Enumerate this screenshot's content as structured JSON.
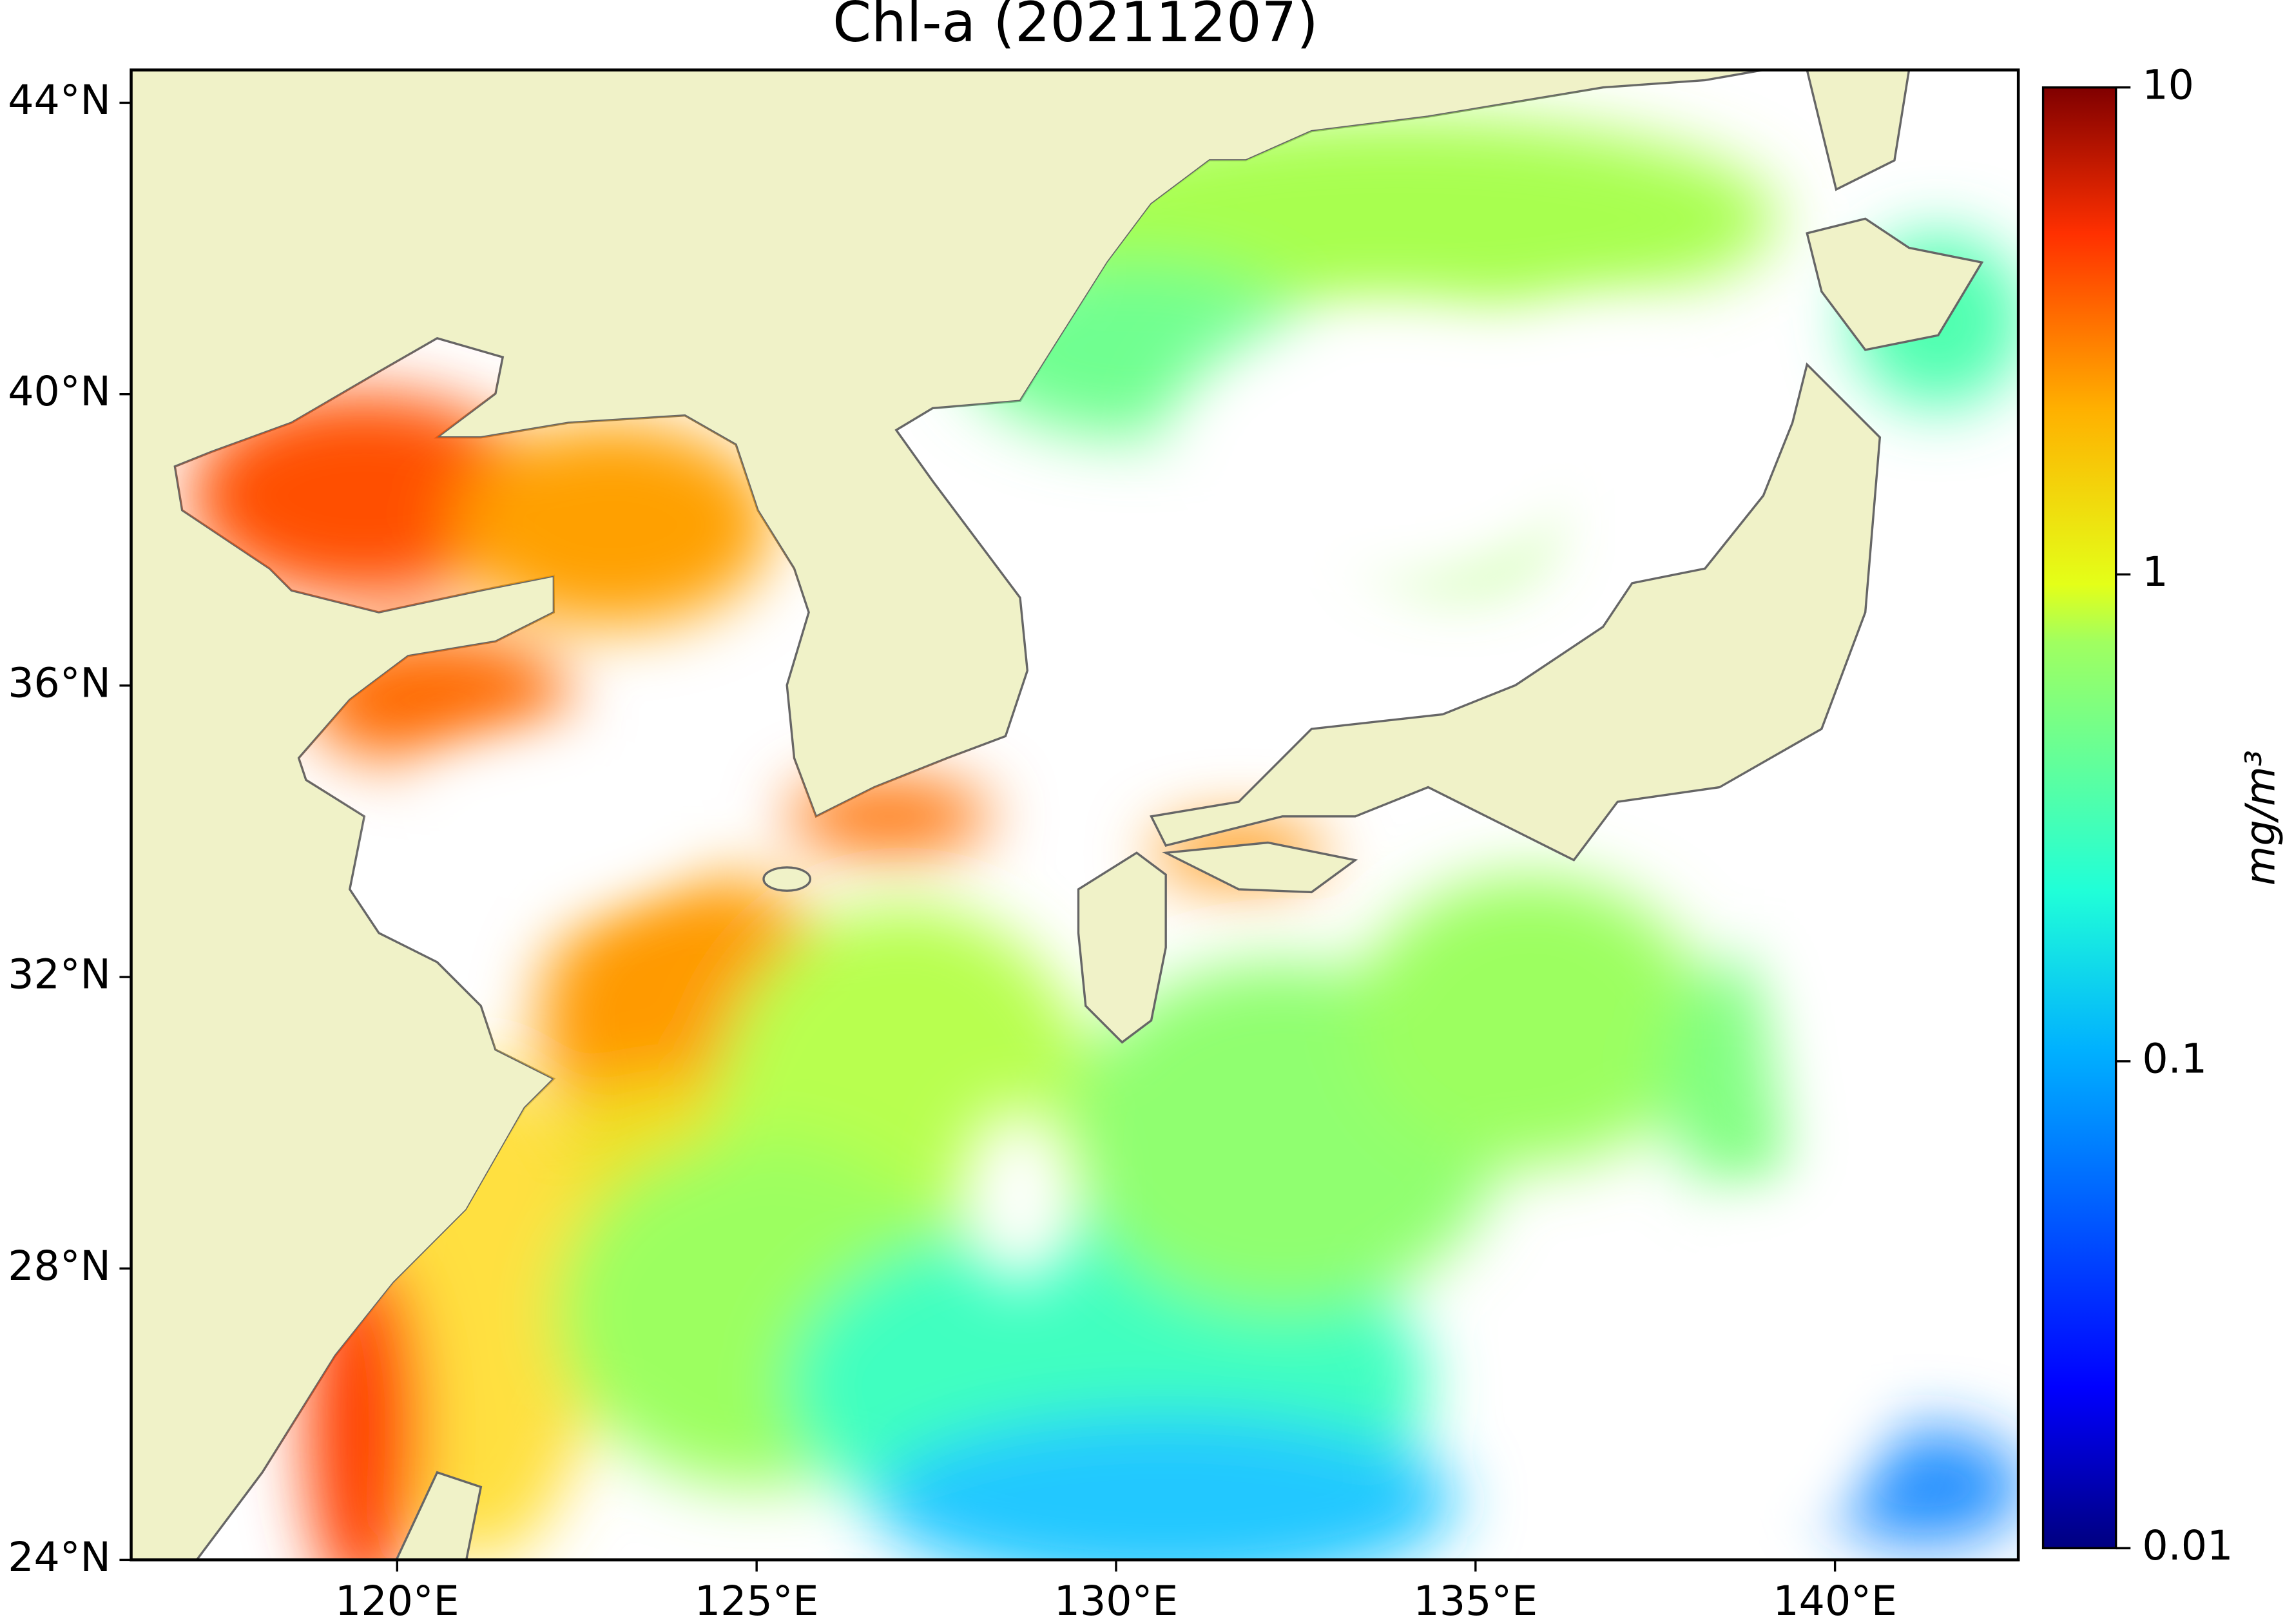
{
  "chart_data": {
    "type": "map",
    "title": "Chl-a (20211207)",
    "xlim": [
      116.3,
      142.55
    ],
    "ylim": [
      24,
      44.45
    ],
    "xticks": [
      {
        "value": 120,
        "label": "120°E"
      },
      {
        "value": 125,
        "label": "125°E"
      },
      {
        "value": 130,
        "label": "130°E"
      },
      {
        "value": 135,
        "label": "135°E"
      },
      {
        "value": 140,
        "label": "140°E"
      }
    ],
    "yticks": [
      {
        "value": 24,
        "label": "24°N"
      },
      {
        "value": 28,
        "label": "28°N"
      },
      {
        "value": 32,
        "label": "32°N"
      },
      {
        "value": 36,
        "label": "36°N"
      },
      {
        "value": 40,
        "label": "40°N"
      },
      {
        "value": 44,
        "label": "44°N"
      }
    ],
    "colorbar": {
      "label": "mg/m³",
      "lim": [
        0.01,
        10
      ],
      "log": true,
      "colormap": "jet",
      "ticks": [
        0.01,
        0.1,
        1,
        10
      ]
    }
  }
}
